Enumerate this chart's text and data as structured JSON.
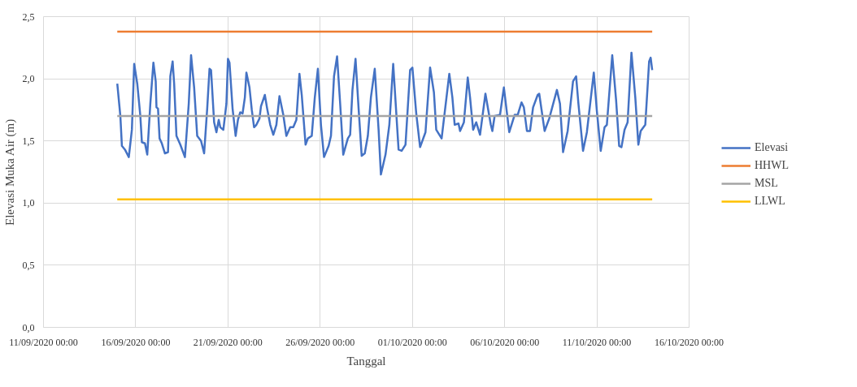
{
  "chart_data": {
    "type": "line",
    "xlabel": "Tanggal",
    "ylabel": "Elevasi Muka Air (m)",
    "xlim": [
      "2020-09-11",
      "2020-10-16"
    ],
    "xticks": [
      {
        "value": "2020-09-11",
        "label": "11/09/2020 00:00"
      },
      {
        "value": "2020-09-16",
        "label": "16/09/2020 00:00"
      },
      {
        "value": "2020-09-21",
        "label": "21/09/2020 00:00"
      },
      {
        "value": "2020-09-26",
        "label": "26/09/2020 00:00"
      },
      {
        "value": "2020-10-01",
        "label": "01/10/2020 00:00"
      },
      {
        "value": "2020-10-06",
        "label": "06/10/2020 00:00"
      },
      {
        "value": "2020-10-11",
        "label": "11/10/2020 00:00"
      },
      {
        "value": "2020-10-16",
        "label": "16/10/2020 00:00"
      }
    ],
    "ylim": [
      0,
      2.5
    ],
    "yticks": [
      {
        "value": 0,
        "label": "0,0"
      },
      {
        "value": 0.5,
        "label": "0,5"
      },
      {
        "value": 1,
        "label": "1,0"
      },
      {
        "value": 1.5,
        "label": "1,5"
      },
      {
        "value": 2,
        "label": "2,0"
      },
      {
        "value": 2.5,
        "label": "2,5"
      }
    ],
    "grid": true,
    "legend": "right",
    "marker": "none",
    "line_style": "solid",
    "series": [
      {
        "name": "Elevasi",
        "color": "#4472c4",
        "x": [
          "2020-09-15T00:00",
          "2020-09-15T04:00",
          "2020-09-15T06:00",
          "2020-09-15T10:00",
          "2020-09-15T15:00",
          "2020-09-15T19:00",
          "2020-09-15T22:00",
          "2020-09-16T02:00",
          "2020-09-16T06:00",
          "2020-09-16T08:00",
          "2020-09-16T12:00",
          "2020-09-16T15:00",
          "2020-09-16T19:00",
          "2020-09-16T23:00",
          "2020-09-17T02:00",
          "2020-09-17T03:00",
          "2020-09-17T05:00",
          "2020-09-17T07:00",
          "2020-09-17T10:00",
          "2020-09-17T14:00",
          "2020-09-17T18:00",
          "2020-09-17T21:00",
          "2020-09-18T00:00",
          "2020-09-18T02:00",
          "2020-09-18T05:00",
          "2020-09-18T10:00",
          "2020-09-18T16:00",
          "2020-09-18T21:00",
          "2020-09-19T00:00",
          "2020-09-19T04:00",
          "2020-09-19T08:00",
          "2020-09-19T13:00",
          "2020-09-19T17:00",
          "2020-09-19T21:00",
          "2020-09-20T00:00",
          "2020-09-20T02:00",
          "2020-09-20T06:00",
          "2020-09-20T09:00",
          "2020-09-20T12:00",
          "2020-09-20T14:00",
          "2020-09-20T18:00",
          "2020-09-20T22:00",
          "2020-09-21T00:00",
          "2020-09-21T02:00",
          "2020-09-21T06:00",
          "2020-09-21T10:00",
          "2020-09-21T13:00",
          "2020-09-21T16:00",
          "2020-09-21T19:00",
          "2020-09-21T22:00",
          "2020-09-22T00:00",
          "2020-09-22T04:00",
          "2020-09-22T07:00",
          "2020-09-22T10:00",
          "2020-09-22T13:00",
          "2020-09-22T17:00",
          "2020-09-22T19:00",
          "2020-09-23T00:00",
          "2020-09-23T03:00",
          "2020-09-23T07:00",
          "2020-09-23T11:00",
          "2020-09-23T15:00",
          "2020-09-23T19:00",
          "2020-09-24T00:00",
          "2020-09-24T04:00",
          "2020-09-24T09:00",
          "2020-09-24T13:00",
          "2020-09-24T17:00",
          "2020-09-24T21:00",
          "2020-09-25T00:00",
          "2020-09-25T05:00",
          "2020-09-25T08:00",
          "2020-09-25T13:00",
          "2020-09-25T17:00",
          "2020-09-25T21:00",
          "2020-09-26T01:00",
          "2020-09-26T05:00",
          "2020-09-26T11:00",
          "2020-09-26T14:00",
          "2020-09-26T18:00",
          "2020-09-26T22:00",
          "2020-09-27T02:00",
          "2020-09-27T06:00",
          "2020-09-27T12:00",
          "2020-09-27T15:00",
          "2020-09-27T18:00",
          "2020-09-27T22:00",
          "2020-09-28T02:00",
          "2020-09-28T06:00",
          "2020-09-28T10:00",
          "2020-09-28T14:00",
          "2020-09-28T18:00",
          "2020-09-28T23:00",
          "2020-09-29T04:00",
          "2020-09-29T07:00",
          "2020-09-29T13:00",
          "2020-09-29T18:00",
          "2020-09-29T23:00",
          "2020-09-30T06:00",
          "2020-09-30T10:00",
          "2020-09-30T15:00",
          "2020-09-30T21:00",
          "2020-10-01T00:00",
          "2020-10-01T05:00",
          "2020-10-01T10:00",
          "2020-10-01T17:00",
          "2020-10-01T23:00",
          "2020-10-02T04:00",
          "2020-10-02T07:00",
          "2020-10-02T14:00",
          "2020-10-03T00:00",
          "2020-10-03T04:00",
          "2020-10-03T07:00",
          "2020-10-03T12:00",
          "2020-10-03T14:00",
          "2020-10-03T19:00",
          "2020-10-04T00:00",
          "2020-10-04T03:00",
          "2020-10-04T07:00",
          "2020-10-04T11:00",
          "2020-10-04T16:00",
          "2020-10-04T23:00",
          "2020-10-05T06:00",
          "2020-10-05T08:00",
          "2020-10-05T11:00",
          "2020-10-05T18:00",
          "2020-10-05T23:00",
          "2020-10-06T06:00",
          "2020-10-06T13:00",
          "2020-10-06T17:00",
          "2020-10-06T22:00",
          "2020-10-07T01:00",
          "2020-10-07T05:00",
          "2020-10-07T09:00",
          "2020-10-07T13:00",
          "2020-10-07T19:00",
          "2020-10-07T21:00",
          "2020-10-08T04:00",
          "2020-10-08T10:00",
          "2020-10-08T20:00",
          "2020-10-09T00:00",
          "2020-10-09T04:00",
          "2020-10-09T10:00",
          "2020-10-09T17:00",
          "2020-10-09T21:00",
          "2020-10-10T00:00",
          "2020-10-10T06:00",
          "2020-10-10T11:00",
          "2020-10-10T20:00",
          "2020-10-11T00:00",
          "2020-10-11T05:00",
          "2020-10-11T10:00",
          "2020-10-11T13:00",
          "2020-10-11T20:00",
          "2020-10-12T01:00",
          "2020-10-12T05:00",
          "2020-10-12T08:00",
          "2020-10-12T12:00",
          "2020-10-12T16:00",
          "2020-10-12T21:00",
          "2020-10-13T02:00",
          "2020-10-13T06:00",
          "2020-10-13T09:00",
          "2020-10-13T15:00",
          "2020-10-13T20:00",
          "2020-10-13T22:00",
          "2020-10-14T00:00"
        ],
        "values": [
          1.96,
          1.7,
          1.46,
          1.43,
          1.37,
          1.59,
          2.12,
          1.96,
          1.7,
          1.49,
          1.48,
          1.39,
          1.8,
          2.13,
          1.98,
          1.77,
          1.76,
          1.52,
          1.48,
          1.4,
          1.41,
          2.02,
          2.14,
          1.96,
          1.54,
          1.47,
          1.37,
          1.8,
          2.19,
          1.93,
          1.54,
          1.5,
          1.4,
          1.76,
          2.08,
          2.07,
          1.65,
          1.57,
          1.67,
          1.61,
          1.59,
          1.8,
          2.16,
          2.13,
          1.76,
          1.54,
          1.67,
          1.73,
          1.72,
          1.85,
          2.05,
          1.93,
          1.75,
          1.61,
          1.63,
          1.68,
          1.78,
          1.87,
          1.76,
          1.63,
          1.55,
          1.63,
          1.86,
          1.71,
          1.54,
          1.61,
          1.61,
          1.67,
          2.04,
          1.87,
          1.47,
          1.52,
          1.54,
          1.85,
          2.08,
          1.63,
          1.37,
          1.46,
          1.54,
          2.02,
          2.18,
          1.8,
          1.39,
          1.52,
          1.55,
          1.91,
          2.16,
          1.76,
          1.38,
          1.4,
          1.54,
          1.85,
          2.08,
          1.59,
          1.23,
          1.39,
          1.63,
          2.12,
          1.43,
          1.42,
          1.47,
          2.07,
          2.09,
          1.72,
          1.45,
          1.57,
          2.09,
          1.89,
          1.59,
          1.52,
          2.04,
          1.85,
          1.63,
          1.64,
          1.58,
          1.65,
          2.01,
          1.85,
          1.59,
          1.65,
          1.55,
          1.88,
          1.63,
          1.58,
          1.7,
          1.71,
          1.93,
          1.57,
          1.71,
          1.71,
          1.81,
          1.77,
          1.58,
          1.58,
          1.77,
          1.87,
          1.88,
          1.58,
          1.68,
          1.91,
          1.8,
          1.41,
          1.58,
          1.98,
          2.02,
          1.8,
          1.42,
          1.57,
          2.05,
          1.74,
          1.42,
          1.61,
          1.63,
          2.19,
          1.83,
          1.46,
          1.45,
          1.59,
          1.65,
          2.21,
          1.85,
          1.47,
          1.58,
          1.63,
          2.14,
          2.17,
          2.07
        ]
      },
      {
        "name": "HHWL",
        "color": "#ed7d31",
        "x": [
          "2020-09-15T00:00",
          "2020-10-14T00:00"
        ],
        "values": [
          2.38,
          2.38
        ]
      },
      {
        "name": "MSL",
        "color": "#a5a5a5",
        "x": [
          "2020-09-15T00:00",
          "2020-10-14T00:00"
        ],
        "values": [
          1.7,
          1.7
        ]
      },
      {
        "name": "LLWL",
        "color": "#ffc000",
        "x": [
          "2020-09-15T00:00",
          "2020-10-14T00:00"
        ],
        "values": [
          1.03,
          1.03
        ]
      }
    ]
  }
}
